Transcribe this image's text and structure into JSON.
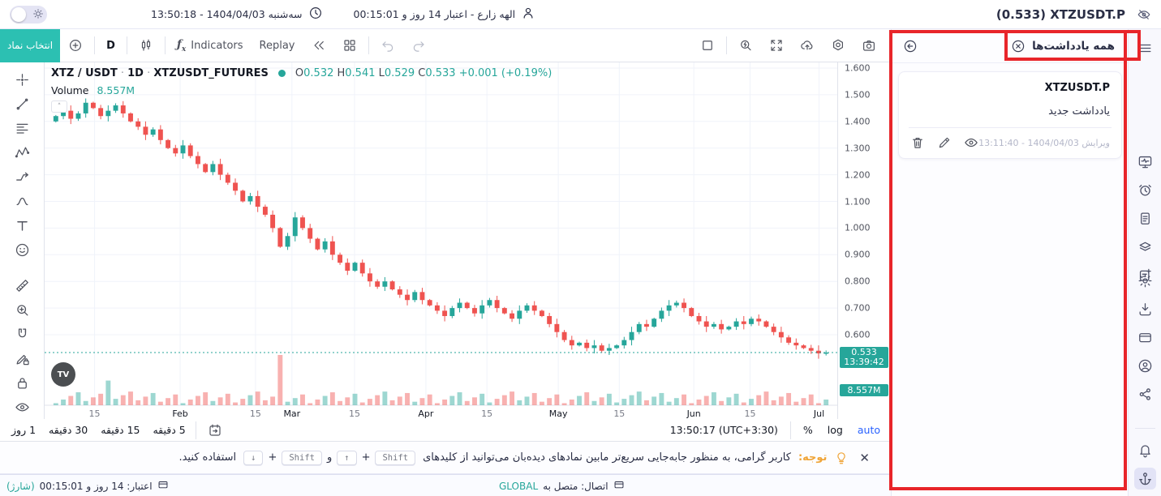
{
  "colors": {
    "accent": "#2cc0b2",
    "up": "#26a69a",
    "down": "#ef5350",
    "highlight": "#e8252a",
    "blue": "#2962ff",
    "orange": "#f0a437"
  },
  "top_bar": {
    "datetime": "سه‌شنبه 1404/04/03 - 13:50:18",
    "user": "الهه زارع - اعتبار 14 روز و 00:15:01",
    "symbol_title": "(0.533) XTZUSDT.P"
  },
  "toolbar": {
    "select_symbol": "انتخاب نماد",
    "interval": "D",
    "indicators": "Indicators",
    "replay": "Replay"
  },
  "legend": {
    "pair": "XTZ / USDT",
    "sep": "·",
    "interval": "1D",
    "market": "XTZUSDT_FUTURES",
    "o_label": "O",
    "o": "0.532",
    "h_label": "H",
    "h": "0.541",
    "l_label": "L",
    "l": "0.529",
    "c_label": "C",
    "c": "0.533",
    "change": "+0.001 (+0.19%)",
    "volume_label": "Volume",
    "volume_value": "8.557M"
  },
  "price_scale": {
    "ticks": [
      "1.600",
      "1.500",
      "1.400",
      "1.300",
      "1.200",
      "1.100",
      "1.000",
      "0.900",
      "0.800",
      "0.700",
      "0.600"
    ],
    "price_tag": {
      "price": "0.533",
      "time": "13:39:42"
    },
    "volume_tag": "8.557M"
  },
  "time_scale": {
    "ticks": [
      {
        "label": "15",
        "pos": 0.063,
        "major": false
      },
      {
        "label": "Feb",
        "pos": 0.171,
        "major": true
      },
      {
        "label": "15",
        "pos": 0.266,
        "major": false
      },
      {
        "label": "Mar",
        "pos": 0.312,
        "major": true
      },
      {
        "label": "15",
        "pos": 0.391,
        "major": false
      },
      {
        "label": "Apr",
        "pos": 0.481,
        "major": true
      },
      {
        "label": "15",
        "pos": 0.558,
        "major": false
      },
      {
        "label": "May",
        "pos": 0.648,
        "major": true
      },
      {
        "label": "15",
        "pos": 0.725,
        "major": false
      },
      {
        "label": "Jun",
        "pos": 0.819,
        "major": true
      },
      {
        "label": "15",
        "pos": 0.89,
        "major": false
      },
      {
        "label": "Jul",
        "pos": 0.977,
        "major": true
      }
    ]
  },
  "chart_data": {
    "type": "candlestick",
    "symbol": "XTZUSDT_FUTURES",
    "interval": "1D",
    "ylim": [
      0.4,
      1.62
    ],
    "current_price": 0.533,
    "current_time": "13:39:42",
    "volume_current": "8.557M",
    "closes": [
      1.42,
      1.44,
      1.41,
      1.43,
      1.47,
      1.45,
      1.42,
      1.44,
      1.46,
      1.43,
      1.4,
      1.38,
      1.35,
      1.37,
      1.33,
      1.3,
      1.28,
      1.31,
      1.27,
      1.24,
      1.21,
      1.24,
      1.2,
      1.17,
      1.14,
      1.1,
      1.12,
      1.08,
      1.05,
      1.0,
      0.93,
      0.97,
      1.04,
      1.0,
      0.96,
      0.92,
      0.95,
      0.9,
      0.87,
      0.84,
      0.87,
      0.83,
      0.8,
      0.78,
      0.8,
      0.77,
      0.75,
      0.73,
      0.76,
      0.73,
      0.71,
      0.69,
      0.67,
      0.7,
      0.72,
      0.7,
      0.68,
      0.71,
      0.73,
      0.7,
      0.68,
      0.66,
      0.69,
      0.71,
      0.69,
      0.67,
      0.64,
      0.61,
      0.58,
      0.56,
      0.57,
      0.55,
      0.56,
      0.54,
      0.55,
      0.56,
      0.58,
      0.61,
      0.64,
      0.63,
      0.66,
      0.69,
      0.71,
      0.72,
      0.7,
      0.67,
      0.65,
      0.63,
      0.64,
      0.62,
      0.63,
      0.65,
      0.64,
      0.66,
      0.65,
      0.63,
      0.61,
      0.59,
      0.57,
      0.56,
      0.55,
      0.54,
      0.53,
      0.533
    ],
    "volume_spikes": [
      {
        "index": 7,
        "value": 4.2
      },
      {
        "index": 30,
        "value": 8.557
      }
    ],
    "volume_max": 8.557
  },
  "bottom_toolbar": {
    "timeframes": [
      "1 روز",
      "30 دقیقه",
      "15 دقیقه",
      "5 دقیقه"
    ],
    "clock": "13:50:17 (UTC+3:30)",
    "percent": "%",
    "log": "log",
    "auto": "auto"
  },
  "notice": {
    "label": "توجه:",
    "text": "کاربر گرامی، به منظور جابه‌جایی سریع‌تر مابین نمادهای دیده‌بان می‌توانید از کلیدهای",
    "keys": [
      "Shift",
      "↑",
      "Shift",
      "↓"
    ],
    "plus": "+",
    "conj": "و",
    "tail": "استفاده کنید."
  },
  "status_bar": {
    "credit": "اعتبار: 14 روز و 00:15:01",
    "charge": "(شارژ)",
    "connection": "اتصال: متصل به",
    "network": "GLOBAL"
  },
  "notes_panel": {
    "title": "همه یادداشت‌ها",
    "note": {
      "symbol": "XTZUSDT.P",
      "body": "یادداشت جدید",
      "edited": "ویرایش 1404/04/03 - 13:11:40"
    }
  },
  "draw_tools": [
    "crosshair",
    "trend-line",
    "fib-retracement",
    "xabcd-pattern",
    "long-position",
    "brush",
    "text-tool",
    "emoji",
    "ruler",
    "zoom-in",
    "magnet",
    "edit-lock",
    "lock-all",
    "hide-drawings",
    "object-tree"
  ],
  "right_rail": {
    "groups": [
      [
        "menu"
      ],
      [
        "market-monitor",
        "alerts",
        "notes",
        "layers",
        "new-note"
      ],
      [
        "settings",
        "download",
        "wallet",
        "profile",
        "share"
      ],
      [
        "notifications",
        "anchor-link"
      ]
    ],
    "active": "anchor-link"
  }
}
